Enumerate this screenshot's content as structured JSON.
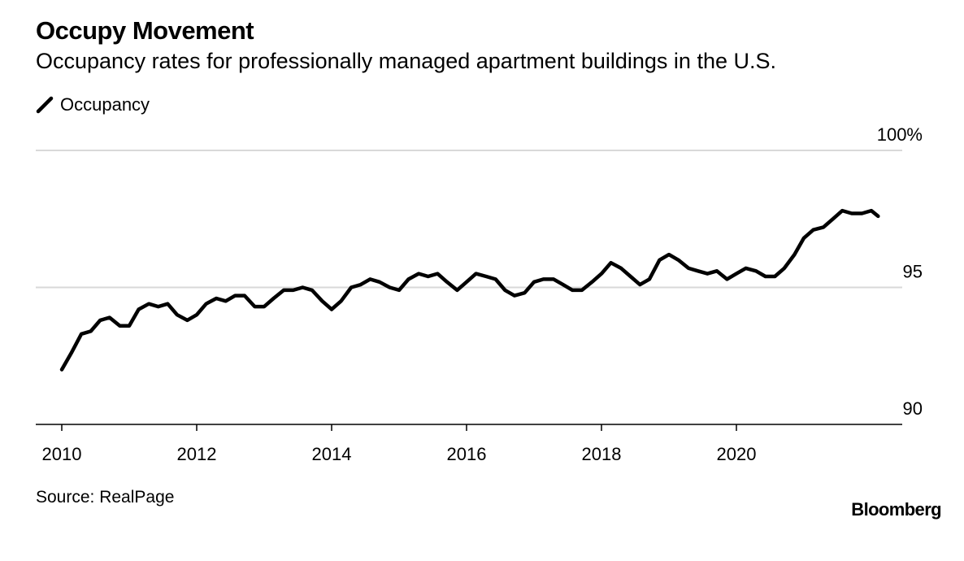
{
  "header": {
    "title": "Occupy Movement",
    "subtitle": "Occupancy rates for professionally managed apartment buildings in the U.S."
  },
  "footer": {
    "source": "Source: RealPage",
    "brand": "Bloomberg"
  },
  "colors": {
    "line": "#000000",
    "grid": "#d9d9d9",
    "axis": "#000000",
    "text": "#000000"
  },
  "chart_data": {
    "type": "line",
    "title": "Occupy Movement",
    "subtitle": "Occupancy rates for professionally managed apartment buildings in the U.S.",
    "xlabel": "",
    "ylabel": "",
    "legend": {
      "position": "top-left",
      "entries": [
        "Occupancy"
      ]
    },
    "grid": true,
    "y_axis_side": "right",
    "ylim": [
      90,
      100
    ],
    "yticks": [
      90,
      95,
      100
    ],
    "ytick_labels": [
      "90",
      "95",
      "100%"
    ],
    "xlim": [
      2010,
      2022.5
    ],
    "xticks": [
      2010,
      2012,
      2014,
      2016,
      2018,
      2020
    ],
    "xtick_labels": [
      "2010",
      "2012",
      "2014",
      "2016",
      "2018",
      "2020"
    ],
    "series": [
      {
        "name": "Occupancy",
        "x": [
          2010.0,
          2010.14,
          2010.29,
          2010.43,
          2010.57,
          2010.71,
          2010.86,
          2011.0,
          2011.14,
          2011.29,
          2011.43,
          2011.57,
          2011.71,
          2011.86,
          2012.0,
          2012.14,
          2012.29,
          2012.43,
          2012.57,
          2012.71,
          2012.86,
          2013.0,
          2013.14,
          2013.29,
          2013.43,
          2013.57,
          2013.71,
          2013.86,
          2014.0,
          2014.14,
          2014.29,
          2014.43,
          2014.57,
          2014.71,
          2014.86,
          2015.0,
          2015.14,
          2015.29,
          2015.43,
          2015.57,
          2015.71,
          2015.86,
          2016.0,
          2016.14,
          2016.29,
          2016.43,
          2016.57,
          2016.71,
          2016.86,
          2017.0,
          2017.14,
          2017.29,
          2017.43,
          2017.57,
          2017.71,
          2017.86,
          2018.0,
          2018.14,
          2018.29,
          2018.43,
          2018.57,
          2018.71,
          2018.86,
          2019.0,
          2019.14,
          2019.29,
          2019.43,
          2019.57,
          2019.71,
          2019.86,
          2020.0,
          2020.14,
          2020.29,
          2020.43,
          2020.57,
          2020.71,
          2020.86,
          2021.0,
          2021.14,
          2021.29,
          2021.43,
          2021.57,
          2021.71,
          2021.86,
          2022.0,
          2022.1
        ],
        "values": [
          92.0,
          92.6,
          93.3,
          93.4,
          93.8,
          93.9,
          93.6,
          93.6,
          94.2,
          94.4,
          94.3,
          94.4,
          94.0,
          93.8,
          94.0,
          94.4,
          94.6,
          94.5,
          94.7,
          94.7,
          94.3,
          94.3,
          94.6,
          94.9,
          94.9,
          95.0,
          94.9,
          94.5,
          94.2,
          94.5,
          95.0,
          95.1,
          95.3,
          95.2,
          95.0,
          94.9,
          95.3,
          95.5,
          95.4,
          95.5,
          95.2,
          94.9,
          95.2,
          95.5,
          95.4,
          95.3,
          94.9,
          94.7,
          94.8,
          95.2,
          95.3,
          95.3,
          95.1,
          94.9,
          94.9,
          95.2,
          95.5,
          95.9,
          95.7,
          95.4,
          95.1,
          95.3,
          96.0,
          96.2,
          96.0,
          95.7,
          95.6,
          95.5,
          95.6,
          95.3,
          95.5,
          95.7,
          95.6,
          95.4,
          95.4,
          95.7,
          96.2,
          96.8,
          97.1,
          97.2,
          97.5,
          97.8,
          97.7,
          97.7,
          97.8,
          97.6
        ]
      }
    ]
  }
}
